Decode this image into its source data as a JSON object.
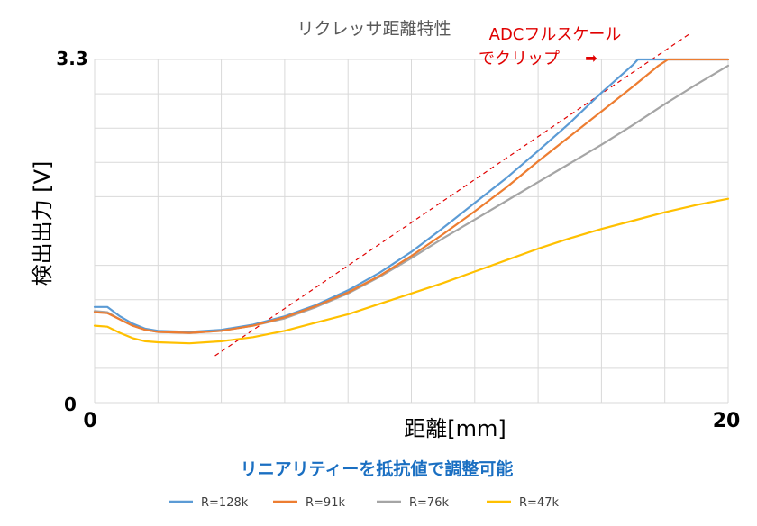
{
  "colors": {
    "r128k": "#5b9bd5",
    "r91k": "#ed7d31",
    "r76k": "#a5a5a5",
    "r47k": "#ffc000",
    "annotation": "#e00000",
    "subtitle": "#1a6fc2",
    "grid": "#d9d9d9"
  },
  "chart_data": {
    "type": "line",
    "title": "リクレッサ距離特性",
    "subtitle": "リニアリティーを抵抗値で調整可能",
    "xlabel": "距離[mm]",
    "ylabel": "検出出力 [V]",
    "xlim": [
      0,
      20
    ],
    "ylim": [
      0,
      3.3
    ],
    "x_ticks": [
      "0",
      "20"
    ],
    "y_ticks": [
      "0",
      "3.3"
    ],
    "grid": true,
    "legend_position": "bottom",
    "annotation": {
      "line1": "ADCフルスケール",
      "line2": "でクリップ",
      "arrow": "➡"
    },
    "reference_line": {
      "style": "dashed",
      "color": "#e00000",
      "points": [
        [
          3.8,
          0.45
        ],
        [
          18.8,
          3.55
        ]
      ]
    },
    "series": [
      {
        "name": "R=128k",
        "color": "#5b9bd5",
        "points": [
          [
            0,
            0.92
          ],
          [
            0.4,
            0.92
          ],
          [
            0.8,
            0.83
          ],
          [
            1.2,
            0.76
          ],
          [
            1.6,
            0.71
          ],
          [
            2,
            0.69
          ],
          [
            3,
            0.68
          ],
          [
            4,
            0.7
          ],
          [
            5,
            0.75
          ],
          [
            6,
            0.83
          ],
          [
            7,
            0.94
          ],
          [
            8,
            1.08
          ],
          [
            9,
            1.25
          ],
          [
            10,
            1.45
          ],
          [
            11,
            1.68
          ],
          [
            12,
            1.92
          ],
          [
            13,
            2.16
          ],
          [
            14,
            2.42
          ],
          [
            15,
            2.69
          ],
          [
            16,
            2.98
          ],
          [
            17,
            3.25
          ],
          [
            17.15,
            3.3
          ],
          [
            20,
            3.3
          ]
        ]
      },
      {
        "name": "R=91k",
        "color": "#ed7d31",
        "points": [
          [
            0,
            0.87
          ],
          [
            0.4,
            0.86
          ],
          [
            0.8,
            0.8
          ],
          [
            1.2,
            0.74
          ],
          [
            1.6,
            0.7
          ],
          [
            2,
            0.68
          ],
          [
            3,
            0.67
          ],
          [
            4,
            0.69
          ],
          [
            5,
            0.74
          ],
          [
            6,
            0.82
          ],
          [
            7,
            0.93
          ],
          [
            8,
            1.06
          ],
          [
            9,
            1.22
          ],
          [
            10,
            1.41
          ],
          [
            11,
            1.62
          ],
          [
            12,
            1.84
          ],
          [
            13,
            2.07
          ],
          [
            14,
            2.32
          ],
          [
            15,
            2.56
          ],
          [
            16,
            2.8
          ],
          [
            17,
            3.04
          ],
          [
            17.8,
            3.24
          ],
          [
            18.1,
            3.3
          ],
          [
            20,
            3.3
          ]
        ]
      },
      {
        "name": "R=76k",
        "color": "#a5a5a5",
        "points": [
          [
            0,
            0.88
          ],
          [
            0.4,
            0.87
          ],
          [
            0.8,
            0.8
          ],
          [
            1.2,
            0.74
          ],
          [
            1.6,
            0.7
          ],
          [
            2,
            0.68
          ],
          [
            3,
            0.67
          ],
          [
            4,
            0.69
          ],
          [
            5,
            0.74
          ],
          [
            6,
            0.81
          ],
          [
            7,
            0.92
          ],
          [
            8,
            1.05
          ],
          [
            9,
            1.21
          ],
          [
            10,
            1.39
          ],
          [
            11,
            1.58
          ],
          [
            12,
            1.76
          ],
          [
            13,
            1.94
          ],
          [
            14,
            2.12
          ],
          [
            15,
            2.3
          ],
          [
            16,
            2.48
          ],
          [
            17,
            2.67
          ],
          [
            18,
            2.87
          ],
          [
            19,
            3.06
          ],
          [
            20,
            3.24
          ]
        ]
      },
      {
        "name": "R=47k",
        "color": "#ffc000",
        "points": [
          [
            0,
            0.74
          ],
          [
            0.4,
            0.73
          ],
          [
            0.8,
            0.67
          ],
          [
            1.2,
            0.62
          ],
          [
            1.6,
            0.59
          ],
          [
            2,
            0.58
          ],
          [
            3,
            0.57
          ],
          [
            4,
            0.59
          ],
          [
            5,
            0.63
          ],
          [
            6,
            0.69
          ],
          [
            7,
            0.77
          ],
          [
            8,
            0.85
          ],
          [
            9,
            0.95
          ],
          [
            10,
            1.05
          ],
          [
            11,
            1.15
          ],
          [
            12,
            1.26
          ],
          [
            13,
            1.37
          ],
          [
            14,
            1.48
          ],
          [
            15,
            1.58
          ],
          [
            16,
            1.67
          ],
          [
            17,
            1.75
          ],
          [
            18,
            1.83
          ],
          [
            19,
            1.9
          ],
          [
            20,
            1.96
          ]
        ]
      }
    ]
  }
}
